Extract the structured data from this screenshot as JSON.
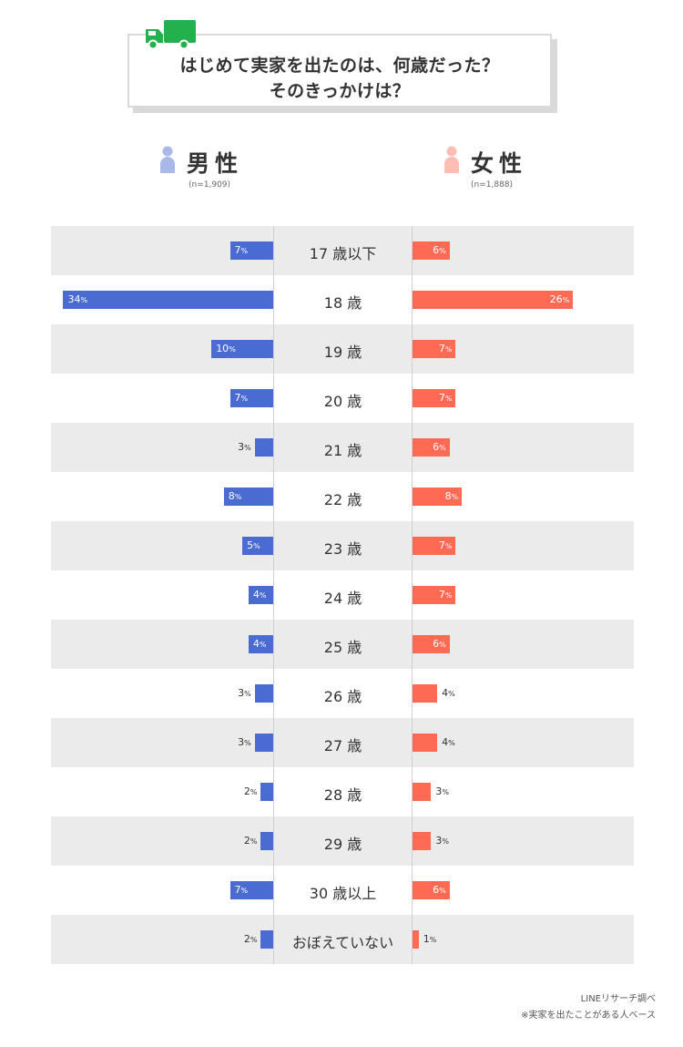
{
  "title": {
    "line1": "はじめて実家を出たのは、何歳だった？",
    "line2": "そのきっかけは？"
  },
  "icons": {
    "header": "truck-icon",
    "male": "person-icon",
    "female": "person-icon"
  },
  "male": {
    "label": "男性",
    "n": "(n=1,909)",
    "color": "#4a6bd1",
    "icon_color": "#a9b8e6"
  },
  "female": {
    "label": "女性",
    "n": "(n=1,888)",
    "color": "#ff6a55",
    "icon_color": "#ffbdb3"
  },
  "row_band_color": "#ebebeb",
  "chart_data": {
    "type": "bar",
    "orientation": "horizontal-diverging",
    "unit": "%",
    "categories": [
      "17 歳以下",
      "18 歳",
      "19 歳",
      "20 歳",
      "21 歳",
      "22 歳",
      "23 歳",
      "24 歳",
      "25 歳",
      "26 歳",
      "27 歳",
      "28 歳",
      "29 歳",
      "30 歳以上",
      "おぼえていない"
    ],
    "series": [
      {
        "name": "男性",
        "values": [
          7,
          34,
          10,
          7,
          3,
          8,
          5,
          4,
          4,
          3,
          3,
          2,
          2,
          7,
          2
        ]
      },
      {
        "name": "女性",
        "values": [
          6,
          26,
          7,
          7,
          6,
          8,
          7,
          7,
          6,
          4,
          4,
          3,
          3,
          6,
          1
        ]
      }
    ]
  },
  "footer": {
    "source": "LINEリサーチ調べ",
    "note": "※実家を出たことがある人ベース"
  }
}
